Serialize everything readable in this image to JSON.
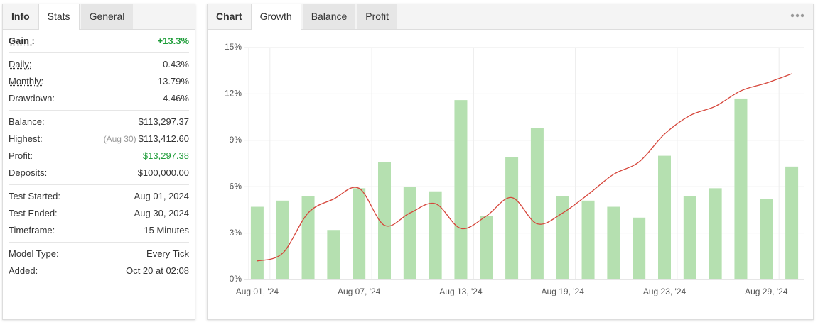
{
  "stats_panel": {
    "tabs": [
      "Info",
      "Stats",
      "General"
    ],
    "sections": [
      [
        {
          "label": "Gain :",
          "value": "+13.3%",
          "dotted": true,
          "bold": true,
          "color": "#1f9d3a"
        }
      ],
      [
        {
          "label": "Daily:",
          "value": "0.43%",
          "dotted": true
        },
        {
          "label": "Monthly:",
          "value": "13.79%",
          "dotted": true
        },
        {
          "label": "Drawdown:",
          "value": "4.46%"
        }
      ],
      [
        {
          "label": "Balance:",
          "value": "$113,297.37"
        },
        {
          "label": "Highest:",
          "note": "(Aug 30)",
          "value": "$113,412.60"
        },
        {
          "label": "Profit:",
          "value": "$13,297.38",
          "color": "#1f9d3a"
        },
        {
          "label": "Deposits:",
          "value": "$100,000.00"
        }
      ],
      [
        {
          "label": "Test Started:",
          "value": "Aug 01, 2024"
        },
        {
          "label": "Test Ended:",
          "value": "Aug 30, 2024"
        },
        {
          "label": "Timeframe:",
          "value": "15 Minutes"
        }
      ],
      [
        {
          "label": "Model Type:",
          "value": "Every Tick"
        },
        {
          "label": "Added:",
          "value": "Oct 20 at 02:08"
        }
      ]
    ]
  },
  "chart_panel": {
    "tabs": [
      "Chart",
      "Growth",
      "Balance",
      "Profit"
    ]
  },
  "chart_data": {
    "type": "bar_line",
    "categories": [
      "Aug 01, '24",
      null,
      null,
      null,
      "Aug 07, '24",
      null,
      null,
      null,
      "Aug 13, '24",
      null,
      null,
      null,
      "Aug 19, '24",
      null,
      null,
      null,
      "Aug 23, '24",
      null,
      null,
      null,
      "Aug 29, '24",
      null
    ],
    "series": [
      {
        "type": "bar",
        "color": "#b5e0b0",
        "values": [
          4.7,
          5.1,
          5.4,
          3.2,
          5.9,
          7.6,
          6.0,
          5.7,
          11.6,
          4.1,
          7.9,
          9.8,
          5.4,
          5.1,
          4.7,
          4.0,
          8.0,
          5.4,
          5.9,
          11.7,
          5.2,
          7.3
        ]
      },
      {
        "type": "line",
        "color": "#d6453a",
        "values": [
          1.2,
          1.7,
          4.3,
          5.2,
          5.9,
          3.5,
          4.3,
          4.9,
          3.3,
          4.1,
          5.3,
          3.6,
          4.3,
          5.5,
          6.8,
          7.6,
          9.4,
          10.6,
          11.2,
          12.2,
          12.7,
          13.3
        ]
      }
    ],
    "ylim": [
      0,
      15
    ],
    "yticks": [
      {
        "value": 0,
        "label": "0%"
      },
      {
        "value": 3,
        "label": "3%"
      },
      {
        "value": 6,
        "label": "6%"
      },
      {
        "value": 9,
        "label": "9%"
      },
      {
        "value": 12,
        "label": "12%"
      },
      {
        "value": 15,
        "label": "15%"
      }
    ],
    "grid": true
  }
}
